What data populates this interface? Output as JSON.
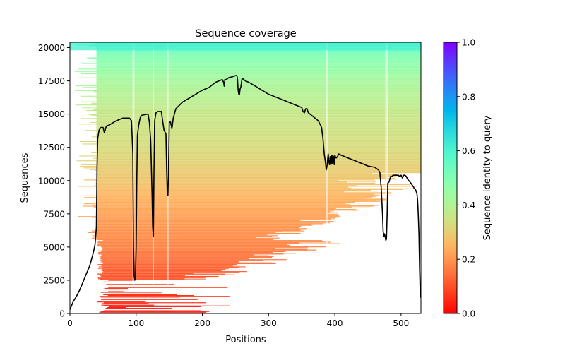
{
  "chart_data": {
    "type": "heatmap",
    "title": "Sequence coverage",
    "xlabel": "Positions",
    "ylabel": "Sequences",
    "xlim": [
      0,
      530
    ],
    "ylim": [
      0,
      20400
    ],
    "xticks": [
      0,
      100,
      200,
      300,
      400,
      500
    ],
    "xtick_labels": [
      "0",
      "100",
      "200",
      "300",
      "400",
      "500"
    ],
    "yticks": [
      0,
      2500,
      5000,
      7500,
      10000,
      12500,
      15000,
      17500,
      20000
    ],
    "ytick_labels": [
      "0",
      "2500",
      "5000",
      "7500",
      "10000",
      "12500",
      "15000",
      "17500",
      "20000"
    ],
    "grid": false,
    "colorbar": {
      "label": "Sequence identity to query",
      "range": [
        0.0,
        1.0
      ],
      "ticks": [
        0.0,
        0.2,
        0.4,
        0.6,
        0.8,
        1.0
      ],
      "tick_labels": [
        "0.0",
        "0.2",
        "0.4",
        "0.6",
        "0.8",
        "1.0"
      ],
      "colormap": "rainbow_r",
      "position": "right"
    },
    "heatmap_description": "Sequences sorted by identity to query (low identity at bottom, high at top); colored where aligned, white where gaps",
    "identity_by_sequence_row": [
      {
        "seq": 0,
        "identity": 0.02
      },
      {
        "seq": 2500,
        "identity": 0.1
      },
      {
        "seq": 5000,
        "identity": 0.17
      },
      {
        "seq": 7500,
        "identity": 0.22
      },
      {
        "seq": 10000,
        "identity": 0.28
      },
      {
        "seq": 12500,
        "identity": 0.33
      },
      {
        "seq": 15000,
        "identity": 0.36
      },
      {
        "seq": 17500,
        "identity": 0.42
      },
      {
        "seq": 19500,
        "identity": 0.5
      },
      {
        "seq": 20400,
        "identity": 0.65
      }
    ],
    "series": [
      {
        "name": "coverage",
        "color": "#000000",
        "x": [
          0,
          5,
          10,
          15,
          20,
          25,
          30,
          35,
          38,
          40,
          41,
          42,
          44,
          47,
          50,
          52,
          55,
          60,
          70,
          80,
          90,
          93,
          95,
          96,
          97,
          98,
          99,
          100,
          101,
          102,
          104,
          106,
          108,
          112,
          118,
          120,
          122,
          124,
          125,
          126,
          127,
          128,
          130,
          133,
          138,
          142,
          145,
          146,
          147,
          148,
          149,
          150,
          152,
          154,
          156,
          160,
          170,
          180,
          190,
          200,
          210,
          215,
          220,
          225,
          230,
          232,
          233,
          234,
          235,
          236,
          240,
          245,
          250,
          252,
          253,
          254,
          255,
          256,
          257,
          258,
          260,
          265,
          270,
          280,
          290,
          300,
          310,
          320,
          330,
          340,
          350,
          352,
          354,
          356,
          358,
          360,
          365,
          370,
          375,
          378,
          380,
          382,
          384,
          386,
          387,
          388,
          390,
          391,
          392,
          393,
          394,
          395,
          396,
          397,
          398,
          399,
          400,
          402,
          404,
          406,
          410,
          420,
          430,
          440,
          450,
          460,
          466,
          468,
          470,
          472,
          473,
          474,
          475,
          476,
          477,
          478,
          479,
          480,
          482,
          484,
          486,
          488,
          490,
          494,
          496,
          498,
          500,
          502,
          504,
          506,
          508,
          510,
          515,
          519,
          520,
          522,
          524,
          525,
          526,
          527,
          528,
          529,
          530
        ],
        "y": [
          300,
          900,
          1300,
          1800,
          2400,
          3000,
          3600,
          4500,
          5200,
          6500,
          11000,
          13200,
          13800,
          14000,
          14000,
          13600,
          14100,
          14200,
          14500,
          14700,
          14700,
          14500,
          12000,
          5000,
          2800,
          2500,
          2700,
          5000,
          10000,
          13400,
          14200,
          14700,
          14900,
          14950,
          15000,
          14400,
          13000,
          9000,
          6500,
          5800,
          11000,
          14500,
          15100,
          15200,
          15200,
          13800,
          13500,
          11000,
          9200,
          8900,
          11000,
          14400,
          14400,
          13900,
          14700,
          15400,
          15900,
          16200,
          16500,
          16800,
          17000,
          17200,
          17400,
          17500,
          17600,
          17400,
          17100,
          17600,
          17600,
          17600,
          17750,
          17800,
          17900,
          17900,
          17700,
          16800,
          16500,
          16500,
          16900,
          17000,
          17700,
          17500,
          17400,
          17100,
          16800,
          16500,
          16300,
          16100,
          15900,
          15700,
          15500,
          15200,
          15100,
          15400,
          15400,
          15100,
          14900,
          14700,
          14500,
          14200,
          14000,
          13200,
          12000,
          11300,
          10800,
          11000,
          12000,
          11400,
          11200,
          11800,
          11200,
          11900,
          11300,
          11900,
          11800,
          11200,
          11900,
          11700,
          11800,
          12000,
          11900,
          11700,
          11500,
          11300,
          11100,
          11000,
          10800,
          10600,
          9500,
          7500,
          6200,
          5800,
          6000,
          5800,
          5500,
          5600,
          7500,
          9800,
          9900,
          10300,
          10300,
          10400,
          10400,
          10400,
          10400,
          10300,
          10400,
          10200,
          10400,
          10400,
          10300,
          10100,
          9800,
          9500,
          9400,
          9300,
          9000,
          8500,
          7500,
          6000,
          3500,
          1300,
          1200
        ]
      }
    ]
  }
}
